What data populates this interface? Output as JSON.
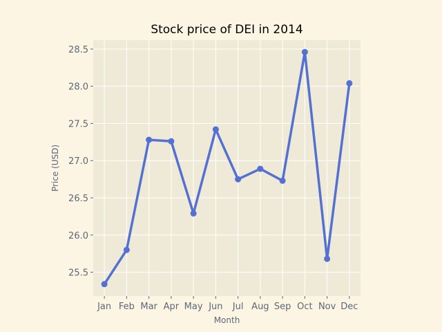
{
  "chart_data": {
    "type": "line",
    "title": "Stock price of DEI in 2014",
    "xlabel": "Month",
    "ylabel": "Price (USD)",
    "categories": [
      "Jan",
      "Feb",
      "Mar",
      "Apr",
      "May",
      "Jun",
      "Jul",
      "Aug",
      "Sep",
      "Oct",
      "Nov",
      "Dec"
    ],
    "series": [
      {
        "values": [
          25.34,
          25.8,
          27.28,
          27.26,
          26.29,
          27.42,
          26.75,
          26.89,
          26.73,
          28.46,
          25.68,
          28.04
        ],
        "color": "#5470d0"
      }
    ],
    "ylim": [
      25.18,
      28.62
    ],
    "yticks": [
      25.5,
      26.0,
      26.5,
      27.0,
      27.5,
      28.0,
      28.5
    ],
    "ytick_labels": [
      "25.5",
      "26.0",
      "26.5",
      "27.0",
      "27.5",
      "28.0",
      "28.5"
    ],
    "grid": true,
    "colors": {
      "plot_background": "#efe9d8",
      "figure_background": "#fcf5e3",
      "grid": "#ffffff"
    }
  }
}
